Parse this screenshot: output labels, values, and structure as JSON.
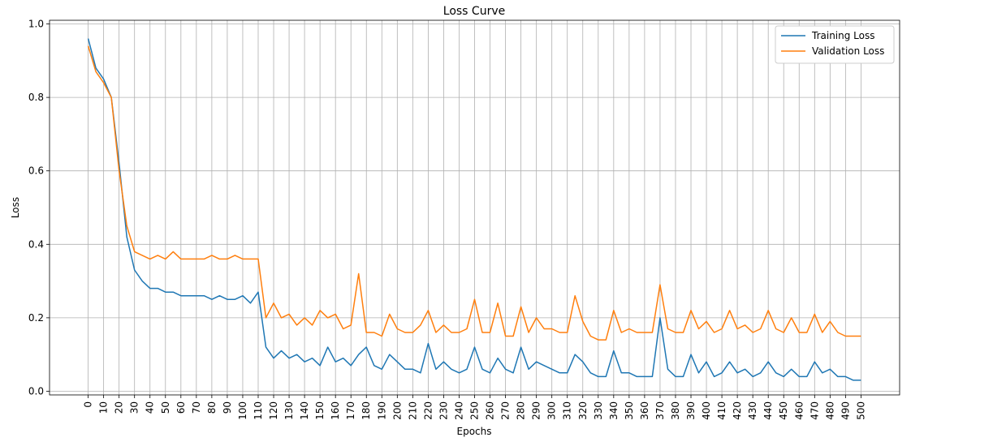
{
  "chart_data": {
    "type": "line",
    "title": "Loss Curve",
    "xlabel": "Epochs",
    "ylabel": "Loss",
    "xlim": [
      -25,
      525
    ],
    "ylim": [
      -0.01,
      1.01
    ],
    "x_ticks": [
      0,
      10,
      20,
      30,
      40,
      50,
      60,
      70,
      80,
      90,
      100,
      110,
      120,
      130,
      140,
      150,
      160,
      170,
      180,
      190,
      200,
      210,
      220,
      230,
      240,
      250,
      260,
      270,
      280,
      290,
      300,
      310,
      320,
      330,
      340,
      350,
      360,
      370,
      380,
      390,
      400,
      410,
      420,
      430,
      440,
      450,
      460,
      470,
      480,
      490,
      500
    ],
    "y_ticks": [
      0.0,
      0.2,
      0.4,
      0.6,
      0.8,
      1.0
    ],
    "grid": true,
    "legend_position": "upper right",
    "x": [
      0,
      5,
      10,
      15,
      20,
      25,
      30,
      35,
      40,
      45,
      50,
      55,
      60,
      65,
      70,
      75,
      80,
      85,
      90,
      95,
      100,
      105,
      110,
      115,
      120,
      125,
      130,
      135,
      140,
      145,
      150,
      155,
      160,
      165,
      170,
      175,
      180,
      185,
      190,
      195,
      200,
      205,
      210,
      215,
      220,
      225,
      230,
      235,
      240,
      245,
      250,
      255,
      260,
      265,
      270,
      275,
      280,
      285,
      290,
      295,
      300,
      305,
      310,
      315,
      320,
      325,
      330,
      335,
      340,
      345,
      350,
      355,
      360,
      365,
      370,
      375,
      380,
      385,
      390,
      395,
      400,
      405,
      410,
      415,
      420,
      425,
      430,
      435,
      440,
      445,
      450,
      455,
      460,
      465,
      470,
      475,
      480,
      485,
      490,
      495,
      500
    ],
    "series": [
      {
        "name": "Training Loss",
        "color": "#1f77b4",
        "values": [
          0.96,
          0.88,
          0.85,
          0.8,
          0.62,
          0.42,
          0.33,
          0.3,
          0.28,
          0.28,
          0.27,
          0.27,
          0.26,
          0.26,
          0.26,
          0.26,
          0.25,
          0.26,
          0.25,
          0.25,
          0.26,
          0.24,
          0.27,
          0.12,
          0.09,
          0.11,
          0.09,
          0.1,
          0.08,
          0.09,
          0.07,
          0.12,
          0.08,
          0.09,
          0.07,
          0.1,
          0.12,
          0.07,
          0.06,
          0.1,
          0.08,
          0.06,
          0.06,
          0.05,
          0.13,
          0.06,
          0.08,
          0.06,
          0.05,
          0.06,
          0.12,
          0.06,
          0.05,
          0.09,
          0.06,
          0.05,
          0.12,
          0.06,
          0.08,
          0.07,
          0.06,
          0.05,
          0.05,
          0.1,
          0.08,
          0.05,
          0.04,
          0.04,
          0.11,
          0.05,
          0.05,
          0.04,
          0.04,
          0.04,
          0.2,
          0.06,
          0.04,
          0.04,
          0.1,
          0.05,
          0.08,
          0.04,
          0.05,
          0.08,
          0.05,
          0.06,
          0.04,
          0.05,
          0.08,
          0.05,
          0.04,
          0.06,
          0.04,
          0.04,
          0.08,
          0.05,
          0.06,
          0.04,
          0.04,
          0.03,
          0.03
        ]
      },
      {
        "name": "Validation Loss",
        "color": "#ff7f0e",
        "values": [
          0.94,
          0.87,
          0.84,
          0.8,
          0.6,
          0.45,
          0.38,
          0.37,
          0.36,
          0.37,
          0.36,
          0.38,
          0.36,
          0.36,
          0.36,
          0.36,
          0.37,
          0.36,
          0.36,
          0.37,
          0.36,
          0.36,
          0.36,
          0.2,
          0.24,
          0.2,
          0.21,
          0.18,
          0.2,
          0.18,
          0.22,
          0.2,
          0.21,
          0.17,
          0.18,
          0.32,
          0.16,
          0.16,
          0.15,
          0.21,
          0.17,
          0.16,
          0.16,
          0.18,
          0.22,
          0.16,
          0.18,
          0.16,
          0.16,
          0.17,
          0.25,
          0.16,
          0.16,
          0.24,
          0.15,
          0.15,
          0.23,
          0.16,
          0.2,
          0.17,
          0.17,
          0.16,
          0.16,
          0.26,
          0.19,
          0.15,
          0.14,
          0.14,
          0.22,
          0.16,
          0.17,
          0.16,
          0.16,
          0.16,
          0.29,
          0.17,
          0.16,
          0.16,
          0.22,
          0.17,
          0.19,
          0.16,
          0.17,
          0.22,
          0.17,
          0.18,
          0.16,
          0.17,
          0.22,
          0.17,
          0.16,
          0.2,
          0.16,
          0.16,
          0.21,
          0.16,
          0.19,
          0.16,
          0.15,
          0.15,
          0.15
        ]
      }
    ]
  }
}
